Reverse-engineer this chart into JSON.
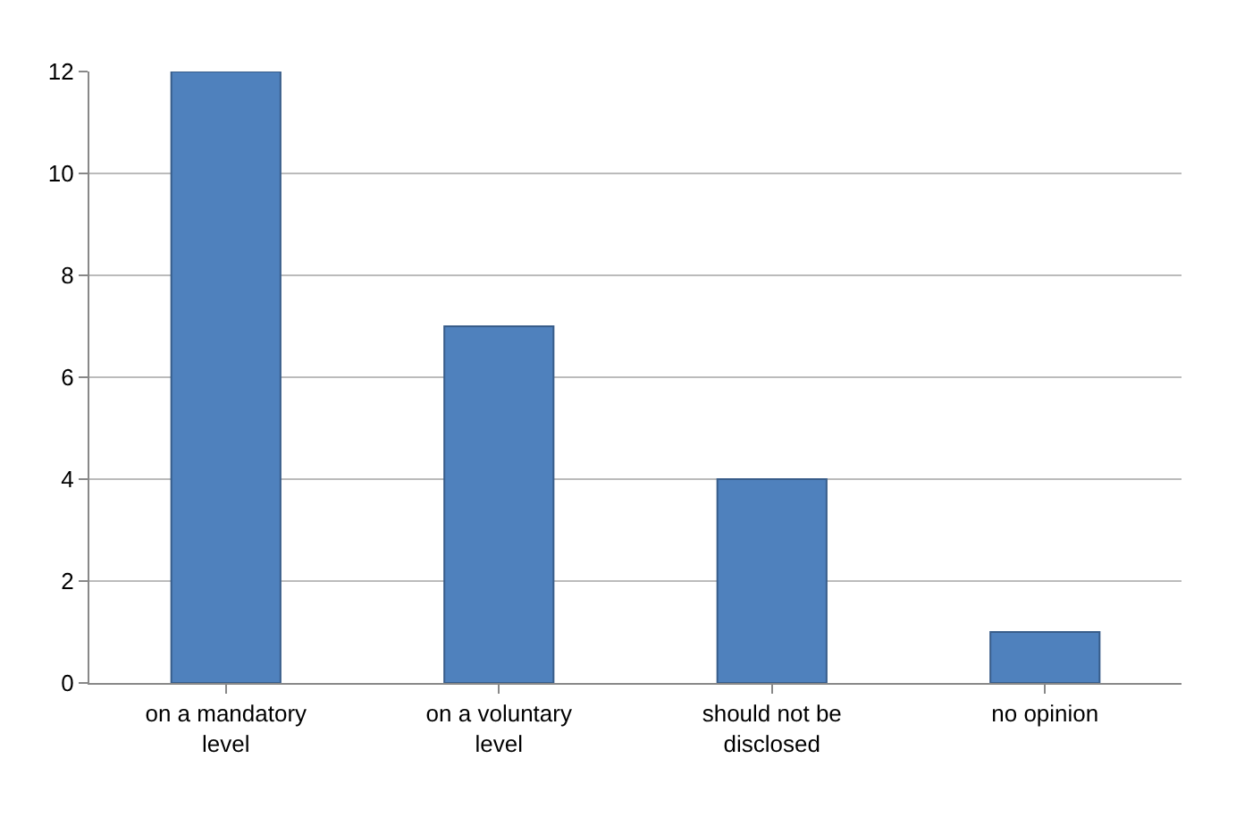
{
  "chart_data": {
    "type": "bar",
    "categories": [
      "on a mandatory level",
      "on a voluntary level",
      "should not be disclosed",
      "no opinion"
    ],
    "values": [
      12,
      7,
      4,
      1
    ],
    "color": "#4f81bd",
    "ylim": [
      0,
      12
    ],
    "yticks": [
      0,
      2,
      4,
      6,
      8,
      10,
      12
    ],
    "grid": "y"
  }
}
